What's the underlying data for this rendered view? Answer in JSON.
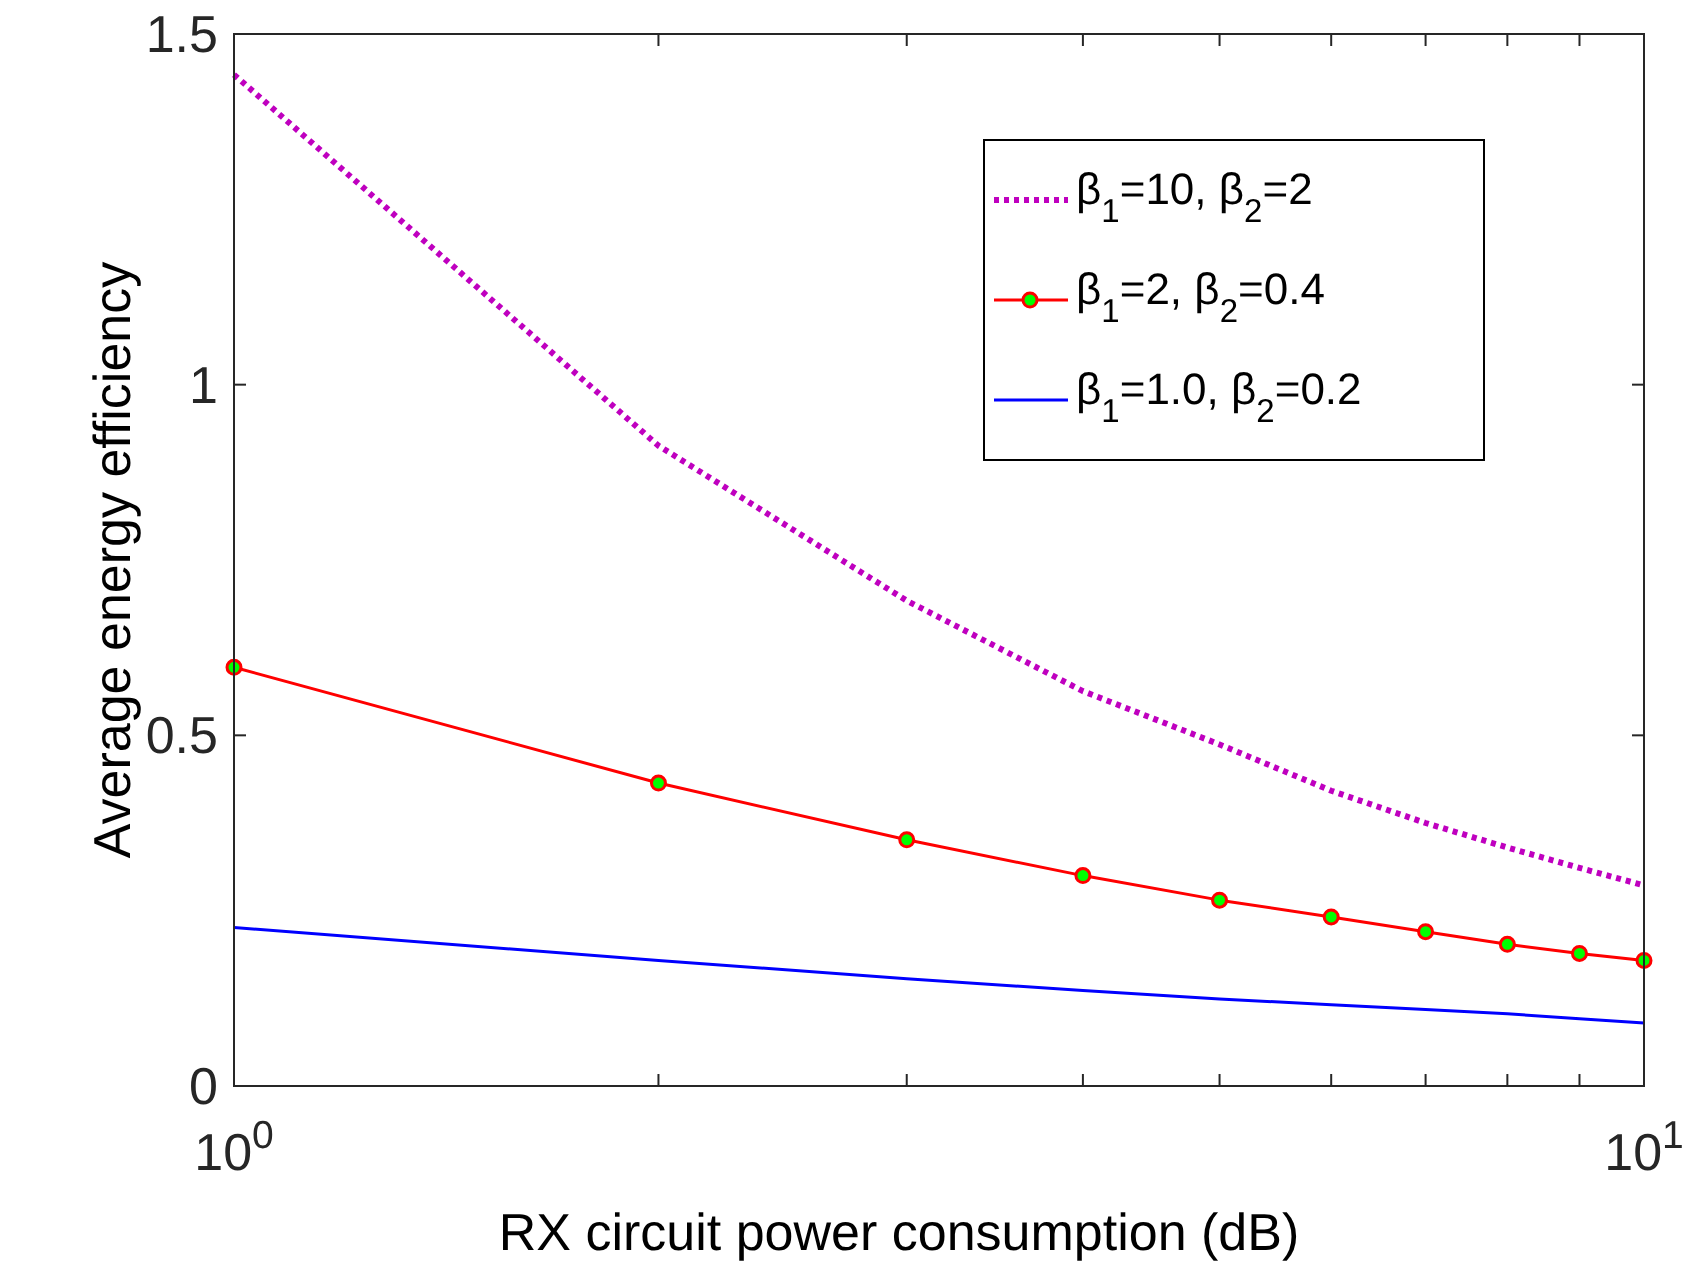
{
  "chart_data": {
    "type": "line",
    "xlabel": "RX circuit power consumption (dB)",
    "ylabel": "Average energy efficiency",
    "log": "x",
    "xlim": [
      1,
      10
    ],
    "ylim": [
      0,
      1.5
    ],
    "xticks": [
      {
        "value": 1,
        "label": "10$^{0}$"
      },
      {
        "value": 2,
        "label": null
      },
      {
        "value": 3,
        "label": null
      },
      {
        "value": 4,
        "label": null
      },
      {
        "value": 5,
        "label": null
      },
      {
        "value": 6,
        "label": null
      },
      {
        "value": 7,
        "label": null
      },
      {
        "value": 8,
        "label": null
      },
      {
        "value": 9,
        "label": null
      },
      {
        "value": 10,
        "label": "10$^{1}$"
      }
    ],
    "yticks": [
      0,
      0.5,
      1,
      1.5
    ],
    "grid": false,
    "legend": "top right",
    "x": [
      1,
      2,
      3,
      4,
      5,
      6,
      7,
      8,
      9,
      10
    ],
    "series": [
      {
        "name": "β$_{1}$=10, β$_{2}$=2",
        "color": "#bf00bf",
        "line_style": "dotted",
        "marker": "none",
        "values": [
          1.442,
          0.913,
          0.692,
          0.563,
          0.487,
          0.421,
          0.375,
          0.34,
          0.311,
          0.286
        ]
      },
      {
        "name": "β$_{1}$=2, β$_{2}$=0.4",
        "color": "#ff0000",
        "line_style": "solid",
        "marker": "circle",
        "values": [
          0.597,
          0.432,
          0.351,
          0.3,
          0.265,
          0.241,
          0.22,
          0.202,
          0.189,
          0.179
        ]
      },
      {
        "name": "β$_{1}$=1.0, β$_{2}$=0.2",
        "color": "#0000ff",
        "line_style": "solid",
        "marker": "none",
        "values": [
          0.226,
          0.179,
          0.153,
          0.136,
          0.124,
          0.116,
          0.109,
          0.103,
          0.096,
          0.09
        ]
      }
    ]
  }
}
